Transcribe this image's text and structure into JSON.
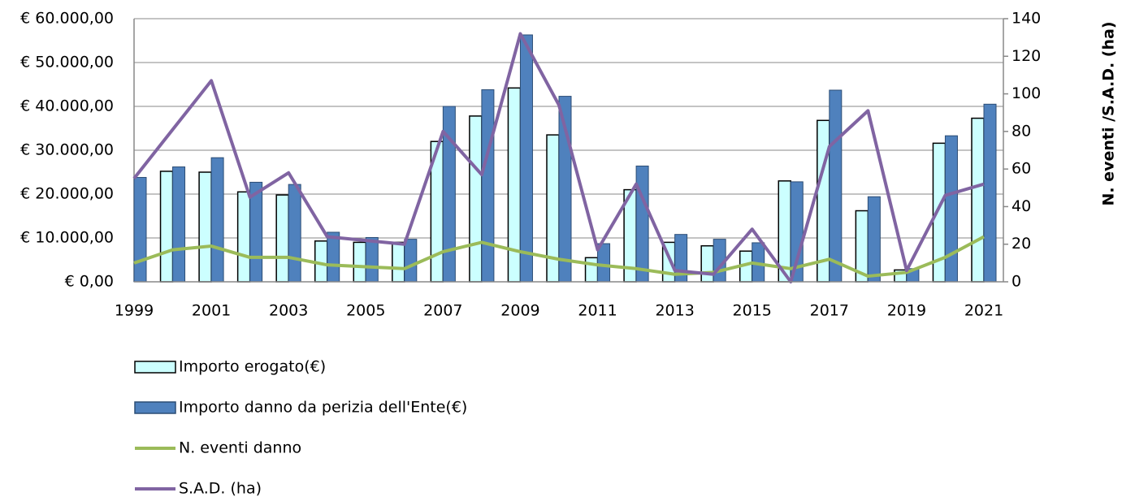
{
  "chart_data": {
    "type": "combo",
    "y2label": "N. eventi /S.A.D. (ha)",
    "categories": [
      "1999",
      null,
      "2001",
      null,
      "2003",
      null,
      "2005",
      null,
      "2007",
      null,
      "2009",
      null,
      "2011",
      null,
      "2013",
      null,
      "2015",
      null,
      "2017",
      null,
      "2019",
      null,
      "2021"
    ],
    "ylim": [
      0,
      60000
    ],
    "yticks": [
      {
        "value": 0,
        "label": "€ 0,00"
      },
      {
        "value": 10000,
        "label": "€ 10.000,00"
      },
      {
        "value": 20000,
        "label": "€ 20.000,00"
      },
      {
        "value": 30000,
        "label": "€ 30.000,00"
      },
      {
        "value": 40000,
        "label": "€ 40.000,00"
      },
      {
        "value": 50000,
        "label": "€ 50.000,00"
      },
      {
        "value": 60000,
        "label": "€ 60.000,00"
      }
    ],
    "y2lim": [
      0,
      140
    ],
    "y2ticks": [
      0,
      20,
      40,
      60,
      80,
      100,
      120,
      140
    ],
    "grid": true,
    "legend": "bottom",
    "series": [
      {
        "name": "Importo erogato(€)",
        "type": "bar",
        "color": "#ccffff",
        "values": [
          null,
          25200,
          25000,
          20500,
          19800,
          9300,
          9000,
          9000,
          32000,
          37800,
          44200,
          33500,
          5500,
          21000,
          9000,
          8200,
          7000,
          23000,
          36800,
          16200,
          2700,
          31600,
          37300
        ]
      },
      {
        "name": "Importo danno da perizia dell'Ente(€)",
        "type": "bar",
        "color": "#4f81bd",
        "values": [
          23800,
          26200,
          28300,
          22700,
          22200,
          11300,
          10100,
          9700,
          40000,
          43800,
          56300,
          42300,
          8700,
          26400,
          10800,
          9700,
          8900,
          22800,
          43700,
          19400,
          3000,
          33300,
          40500
        ]
      },
      {
        "name": "N. eventi danno",
        "type": "line",
        "axis": "y2",
        "color": "#9bbb59",
        "values": [
          10,
          17,
          19,
          13,
          13,
          9,
          8,
          7,
          16,
          21,
          16,
          12,
          9,
          7,
          4,
          5,
          10,
          7,
          12,
          3,
          5,
          13,
          24
        ]
      },
      {
        "name": "S.A.D. (ha)",
        "type": "line",
        "axis": "y2",
        "color": "#8064a2",
        "values": [
          55,
          81,
          107,
          45,
          58,
          24,
          22,
          20,
          80,
          57,
          132,
          94,
          17,
          52,
          6,
          4,
          28,
          0,
          72,
          91,
          6,
          46,
          52
        ]
      }
    ]
  }
}
